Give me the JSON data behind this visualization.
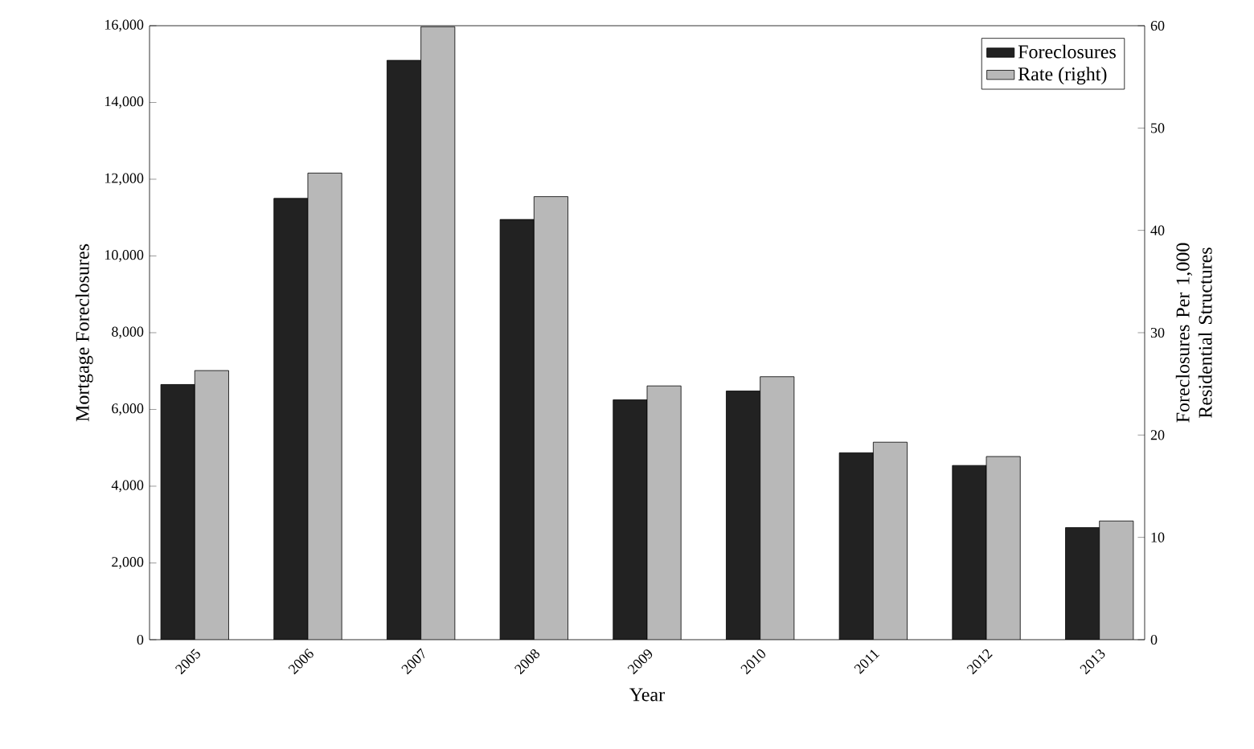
{
  "chart_data": {
    "type": "bar",
    "xlabel": "Year",
    "ylabel": "Mortgage Foreclosures",
    "y2label": "Foreclosures Per 1,000 Residential Structures",
    "categories": [
      "2005",
      "2006",
      "2007",
      "2008",
      "2009",
      "2010",
      "2011",
      "2012",
      "2013"
    ],
    "series": [
      {
        "name": "Foreclosures",
        "color": "#222222",
        "values": [
          6650,
          11500,
          15100,
          10950,
          6250,
          6480,
          4870,
          4540,
          2920
        ]
      },
      {
        "name": "Rate (right)",
        "color": "#b8b8b8",
        "axis": "y2",
        "values": [
          26.3,
          45.6,
          59.9,
          43.3,
          24.8,
          25.7,
          19.3,
          17.9,
          11.6
        ]
      }
    ],
    "ylim": [
      0,
      16000
    ],
    "yticks": [
      0,
      {
        "value": 2000,
        "label": "2,000"
      },
      {
        "value": 4000,
        "label": "4,000"
      },
      {
        "value": 6000,
        "label": "6,000"
      },
      {
        "value": 8000,
        "label": "8,000"
      },
      {
        "value": 10000,
        "label": "10,000"
      },
      {
        "value": 12000,
        "label": "12,000"
      },
      {
        "value": 14000,
        "label": "14,000"
      },
      {
        "value": 16000,
        "label": "16,000"
      }
    ],
    "y2lim": [
      0,
      60
    ],
    "y2ticks": [
      0,
      10,
      20,
      30,
      40,
      50,
      60
    ],
    "legend": "top right",
    "grid": false
  }
}
